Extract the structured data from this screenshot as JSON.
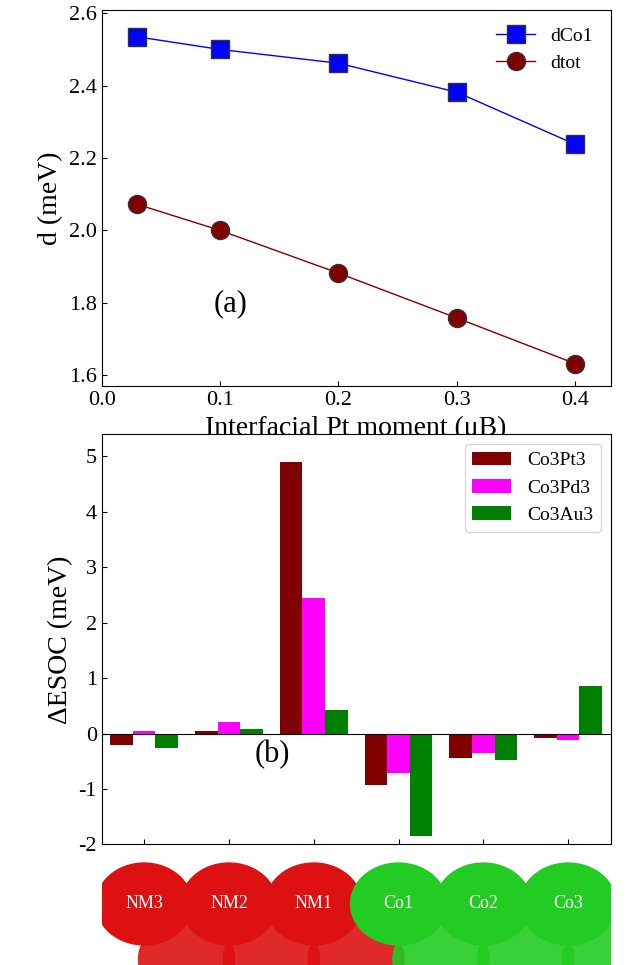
{
  "chart_data": [
    {
      "type": "line",
      "annotation": "(a)",
      "x_label": "Interfacial Pt moment (μB)",
      "y_label": "d (meV)",
      "x": [
        0.03,
        0.1,
        0.2,
        0.3,
        0.4
      ],
      "series": [
        {
          "name": "dCo1",
          "color": "#0000ff",
          "marker": "square",
          "line_style": "solid",
          "values": [
            2.535,
            2.5,
            2.462,
            2.382,
            2.238
          ]
        },
        {
          "name": "dtot",
          "color": "#800000",
          "marker": "circle",
          "line_style": "solid",
          "values": [
            2.072,
            2.0,
            1.882,
            1.758,
            1.632
          ]
        }
      ],
      "xlim": [
        0.0,
        0.43
      ],
      "xticks": [
        {
          "value": 0.0,
          "label": "0.0"
        },
        0.1,
        0.2,
        0.3,
        0.4
      ],
      "ylim": [
        1.57,
        2.61
      ],
      "yticks": [
        1.6,
        1.8,
        {
          "value": 2.0,
          "label": "2.0"
        },
        2.2,
        2.4,
        2.6
      ],
      "legend": "upper right"
    },
    {
      "type": "bar",
      "annotation": "(b)",
      "y_label": "ΔESOC (meV)",
      "categories": [
        "NM3",
        "NM2",
        "NM1",
        "Co1",
        "Co2",
        "Co3"
      ],
      "series": [
        {
          "name": "Co3Pt3",
          "color": "#800000",
          "values": [
            -0.2,
            0.05,
            4.9,
            -0.92,
            -0.45,
            -0.08
          ]
        },
        {
          "name": "Co3Pd3",
          "color": "#ff00ff",
          "values": [
            0.04,
            0.2,
            2.45,
            -0.72,
            -0.35,
            -0.12
          ]
        },
        {
          "name": "Co3Au3",
          "color": "#008000",
          "values": [
            -0.27,
            0.08,
            0.42,
            -1.85,
            -0.47,
            0.85
          ]
        }
      ],
      "ylim": [
        -2.0,
        5.4
      ],
      "yticks": [
        -2,
        -1,
        0,
        1,
        2,
        3,
        4,
        5
      ],
      "legend": "upper right"
    }
  ]
}
